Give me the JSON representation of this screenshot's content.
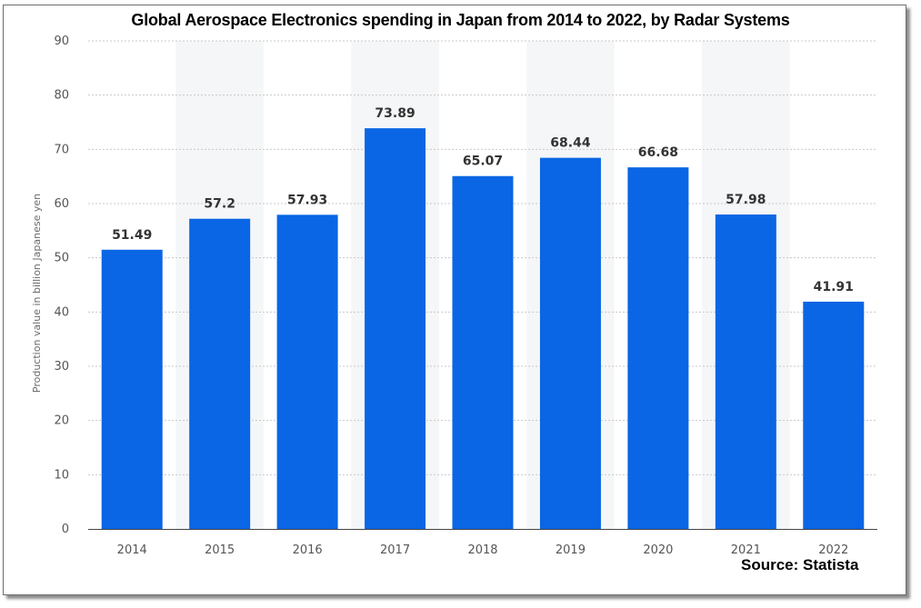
{
  "chart_data": {
    "type": "bar",
    "title": "Global Aerospace Electronics spending in Japan from 2014 to 2022, by Radar Systems",
    "xlabel": "",
    "ylabel": "Production value in billion Japanese yen",
    "categories": [
      "2014",
      "2015",
      "2016",
      "2017",
      "2018",
      "2019",
      "2020",
      "2021",
      "2022"
    ],
    "values": [
      51.49,
      57.2,
      57.93,
      73.89,
      65.07,
      68.44,
      66.68,
      57.98,
      41.91
    ],
    "value_labels": [
      "51.49",
      "57.2",
      "57.93",
      "73.89",
      "65.07",
      "68.44",
      "66.68",
      "57.98",
      "41.91"
    ],
    "ylim": [
      0,
      90
    ],
    "yticks": [
      0,
      10,
      20,
      30,
      40,
      50,
      60,
      70,
      80,
      90
    ],
    "grid": true,
    "legend": "none",
    "bar_color": "#0a66e4",
    "band_color": "#f4f6f8",
    "grid_color": "#c8c8c8"
  },
  "source_note": "Source: Statista"
}
